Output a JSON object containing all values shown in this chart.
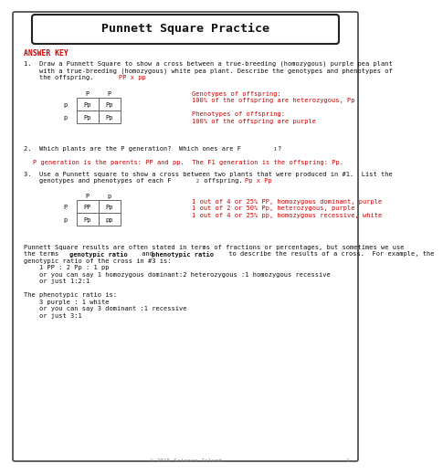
{
  "title": "Punnett Square Practice",
  "answer_key": "ANSWER KEY",
  "bg_color": "#ffffff",
  "border_color": "#222222",
  "red_color": "#cc0000",
  "black_color": "#111111",
  "gray_color": "#888888",
  "q1_line1": "1.  Draw a Punnett Square to show a cross between a true-breeding (homozygous) purple pea plant",
  "q1_line2": "    with a true-breeding (homozygous) white pea plant. Describe the genotypes and phenotypes of",
  "q1_line3": "    the offspring.  ",
  "q1_cross": "PP x pp",
  "q1_geno_label": "Genotypes of offspring:",
  "q1_geno_ans": "100% of the offspring are heterozygous, Pp",
  "q1_pheno_label": "Phenotypes of offspring:",
  "q1_pheno_ans": "100% of the offspring are purple",
  "q1_col_headers": [
    "P",
    "P"
  ],
  "q1_row_headers": [
    "p",
    "p"
  ],
  "q1_cells": [
    [
      "Pp",
      "Pp"
    ],
    [
      "Pp",
      "Pp"
    ]
  ],
  "q2_line": "2.  Which plants are the P generation?  Which ones are F",
  "q2_sub": "1",
  "q2_end": "?",
  "q2_ans": "P generation is the parents: PP and pp.  The F1 generation is the offspring: Pp.",
  "q3_line1": "3.  Use a Punnett square to show a cross between two plants that were produced in #1.  List the",
  "q3_line2": "    genotypes and phenotypes of each F",
  "q3_sub": "2",
  "q3_end": " offspring.  ",
  "q3_cross": "Pp x Pp",
  "q3_col_headers": [
    "P",
    "p"
  ],
  "q3_row_headers": [
    "P",
    "p"
  ],
  "q3_cells": [
    [
      "PP",
      "Pp"
    ],
    [
      "Pp",
      "pp"
    ]
  ],
  "q3_ans1": "1 out of 4 or 25% PP, homozygous dominant, purple",
  "q3_ans2": "1 out of 2 or 50% Pp, heterozygous, purple",
  "q3_ans3": "1 out of 4 or 25% pp, homozygous recessive, white",
  "para_l1": "Punnett Square results are often stated in terms of fractions or percentages, but sometimes we use",
  "para_l2a": "the terms ",
  "para_l2b": "genotypic ratio",
  "para_l2c": " and ",
  "para_l2d": "phenotypic ratio",
  "para_l2e": " to describe the results of a cross.  For example, the",
  "para_l3": "genotypic ratio of the cross in #3 is:",
  "para_l4": "    1 PP : 2 Pp : 1 pp",
  "para_l5": "    or you can say 1 homozygous dominant:2 heterozygous :1 homozygous recessive",
  "para_l6": "    or just 1:2:1",
  "para_l7": "The phenotypic ratio is:",
  "para_l8": "    3 purple : 1 white",
  "para_l9": "    or you can say 3 dominant :1 recessive",
  "para_l10": "    or just 3:1",
  "footer": "© 2015 Science Island",
  "page_num": "1"
}
